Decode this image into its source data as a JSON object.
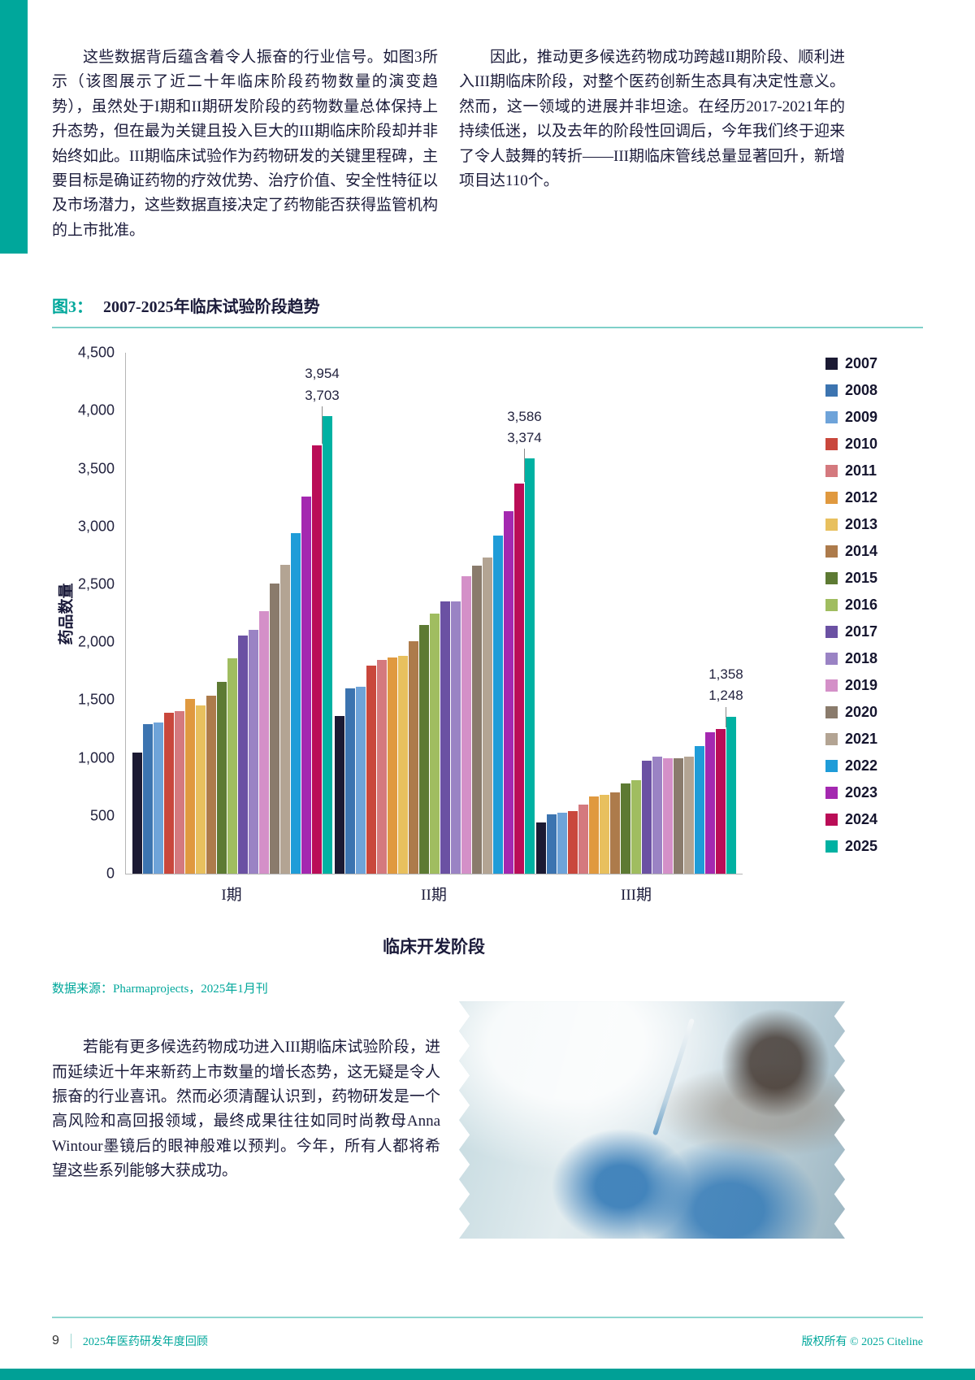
{
  "page": {
    "top_left_paragraph": "这些数据背后蕴含着令人振奋的行业信号。如图3所示（该图展示了近二十年临床阶段药物数量的演变趋势），虽然处于I期和II期研发阶段的药物数量总体保持上升态势，但在最为关键且投入巨大的III期临床阶段却并非始终如此。III期临床试验作为药物研发的关键里程碑，主要目标是确证药物的疗效优势、治疗价值、安全性特征以及市场潜力，这些数据直接决定了药物能否获得监管机构的上市批准。",
    "top_right_paragraph": "因此，推动更多候选药物成功跨越II期阶段、顺利进入III期临床阶段，对整个医药创新生态具有决定性意义。然而，这一领域的进展并非坦途。在经历2017-2021年的持续低迷，以及去年的阶段性回调后，今年我们终于迎来了令人鼓舞的转折——III期临床管线总量显著回升，新增项目达110个。",
    "figure_label": "图3：",
    "figure_title": "2007-2025年临床试验阶段趋势",
    "source_note": "数据来源：Pharmaprojects，2025年1月刊",
    "bottom_paragraph": "若能有更多候选药物成功进入III期临床试验阶段，进而延续近十年来新药上市数量的增长态势，这无疑是令人振奋的行业喜讯。然而必须清醒认识到，药物研发是一个高风险和高回报领域，最终成果往往如同时尚教母Anna Wintour墨镜后的眼神般难以预判。今年，所有人都将希望这些系列能够大获成功。",
    "footer": {
      "page_number": "9",
      "left_text": "2025年医药研发年度回顾",
      "right_text": "版权所有 © 2025 Citeline"
    },
    "accent_color": "#00a79b"
  },
  "chart_data": {
    "type": "bar",
    "title": "2007-2025年临床试验阶段趋势",
    "xlabel": "临床开发阶段",
    "ylabel": "药品数量",
    "ylim": [
      0,
      4500
    ],
    "y_tick_step": 500,
    "grid": false,
    "legend_position": "right",
    "categories": [
      "I期",
      "II期",
      "III期"
    ],
    "series": [
      {
        "name": "2007",
        "color": "#1b1a33",
        "values": [
          1050,
          1360,
          440
        ]
      },
      {
        "name": "2008",
        "color": "#3c74b0",
        "values": [
          1290,
          1600,
          515
        ]
      },
      {
        "name": "2009",
        "color": "#6ea3d9",
        "values": [
          1305,
          1615,
          530
        ]
      },
      {
        "name": "2010",
        "color": "#c9473c",
        "values": [
          1390,
          1800,
          545
        ]
      },
      {
        "name": "2011",
        "color": "#d4797e",
        "values": [
          1405,
          1845,
          600
        ]
      },
      {
        "name": "2012",
        "color": "#e0993f",
        "values": [
          1510,
          1870,
          665
        ]
      },
      {
        "name": "2013",
        "color": "#e8c05e",
        "values": [
          1455,
          1880,
          680
        ]
      },
      {
        "name": "2014",
        "color": "#ad7b4b",
        "values": [
          1540,
          2010,
          700
        ]
      },
      {
        "name": "2015",
        "color": "#5d7a33",
        "values": [
          1660,
          2150,
          780
        ]
      },
      {
        "name": "2016",
        "color": "#a0bd60",
        "values": [
          1860,
          2250,
          805
        ]
      },
      {
        "name": "2017",
        "color": "#6b51a3",
        "values": [
          2060,
          2350,
          980
        ]
      },
      {
        "name": "2018",
        "color": "#9a83c4",
        "values": [
          2110,
          2355,
          1010
        ]
      },
      {
        "name": "2019",
        "color": "#d490c8",
        "values": [
          2270,
          2570,
          1000
        ]
      },
      {
        "name": "2020",
        "color": "#8a7b6c",
        "values": [
          2510,
          2665,
          1000
        ]
      },
      {
        "name": "2021",
        "color": "#b3a493",
        "values": [
          2670,
          2730,
          1015
        ]
      },
      {
        "name": "2022",
        "color": "#1f9cd8",
        "values": [
          2940,
          2920,
          1100
        ]
      },
      {
        "name": "2023",
        "color": "#a428b0",
        "values": [
          3260,
          3130,
          1220
        ]
      },
      {
        "name": "2024",
        "color": "#ba0d57",
        "values": [
          3703,
          3374,
          1248
        ]
      },
      {
        "name": "2025",
        "color": "#00b1a2",
        "values": [
          3954,
          3586,
          1358
        ]
      }
    ],
    "annotations": [
      {
        "category_index": 0,
        "labels": [
          "3,954",
          "3,703"
        ]
      },
      {
        "category_index": 1,
        "labels": [
          "3,586",
          "3,374"
        ]
      },
      {
        "category_index": 2,
        "labels": [
          "1,358",
          "1,248"
        ]
      }
    ]
  }
}
